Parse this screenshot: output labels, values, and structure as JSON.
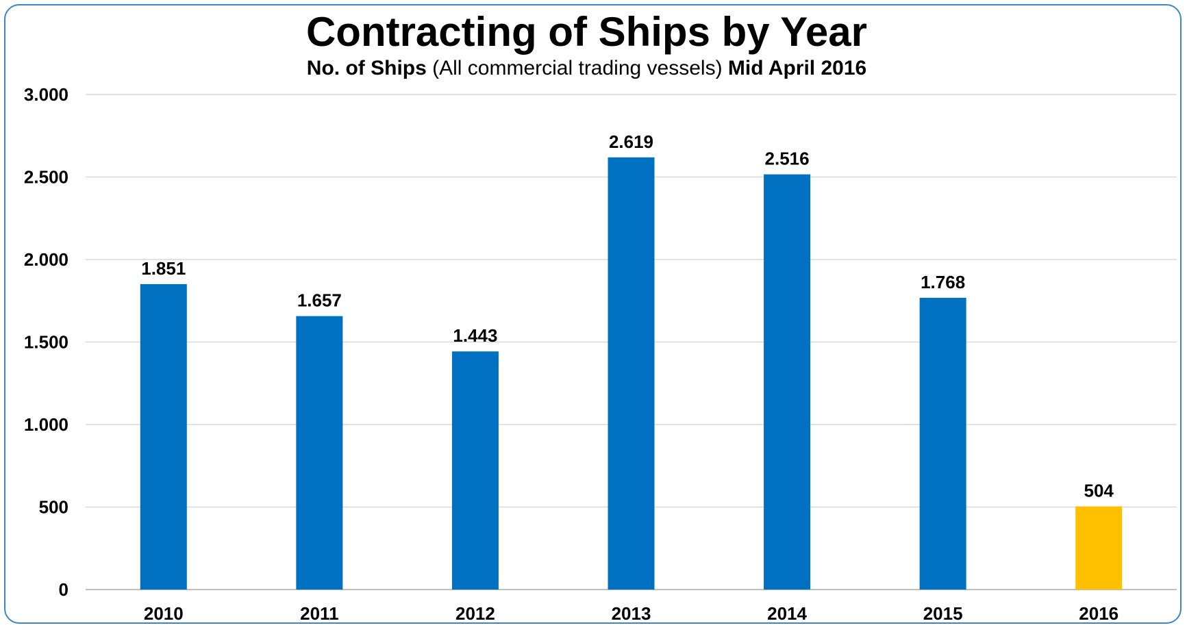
{
  "colors": {
    "border": "#3a86c8",
    "bar": "#0070c0",
    "highlight": "#ffc000",
    "grid": "#d9d9d9"
  },
  "chart_data": {
    "type": "bar",
    "title": "Contracting of Ships by Year",
    "subtitle": {
      "part1": "No. of Ships",
      "part2": " (All commercial trading vessels) ",
      "part3": "Mid April 2016"
    },
    "categories": [
      "2010",
      "2011",
      "2012",
      "2013",
      "2014",
      "2015",
      "2016"
    ],
    "values": [
      1851,
      1657,
      1443,
      2619,
      2516,
      1768,
      504
    ],
    "value_labels": [
      "1.851",
      "1.657",
      "1.443",
      "2.619",
      "2.516",
      "1.768",
      "504"
    ],
    "highlight_index": 6,
    "ylim": [
      0,
      3000
    ],
    "yticks": [
      0,
      500,
      1000,
      1500,
      2000,
      2500,
      3000
    ],
    "ytick_labels": [
      "0",
      "500",
      "1.000",
      "1.500",
      "2.000",
      "2.500",
      "3.000"
    ],
    "xlabel": "",
    "ylabel": "",
    "grid": true,
    "legend": "none"
  }
}
